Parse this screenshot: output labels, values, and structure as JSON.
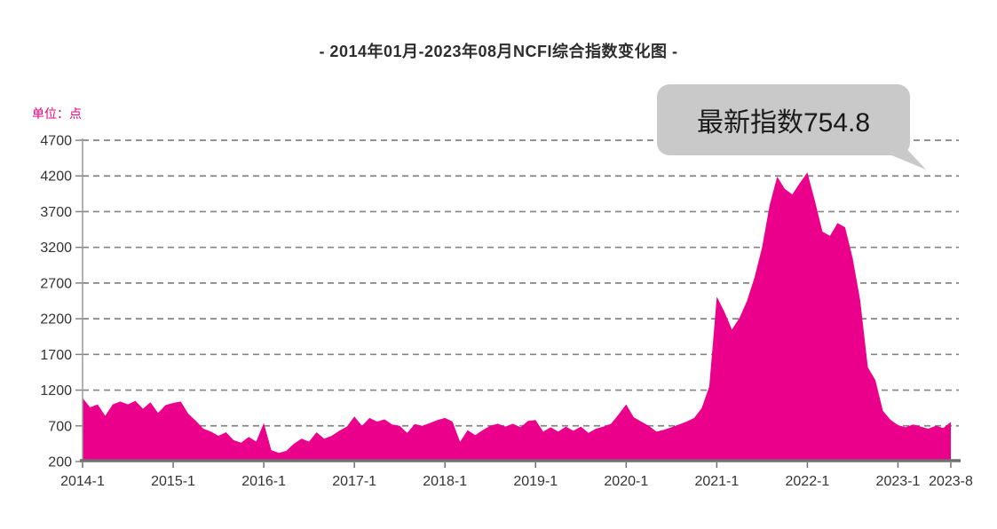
{
  "page": {
    "title": "- 2014年01月-2023年08月NCFI综合指数变化图 -",
    "unit_label": "单位：点"
  },
  "callout": {
    "text": "最新指数754.8"
  },
  "colors": {
    "area": "#EB008B",
    "grid": "#848484",
    "axis": "#6f6f6f",
    "tick_label": "#333333",
    "unit_label": "#e6007e",
    "bubble_bg": "#c9c9c9",
    "bubble_text": "#1a1a1a"
  },
  "chart_data": {
    "type": "area",
    "title": "- 2014年01月-2023年08月NCFI综合指数变化图 -",
    "series_name": "NCFI综合指数",
    "unit": "点",
    "latest_value": 754.8,
    "x_start": "2014-01",
    "x_end": "2023-08",
    "frequency": "monthly",
    "grid": "dashed-horizontal",
    "legend_position": "none",
    "ylim": [
      200,
      4700
    ],
    "y_ticks": [
      200,
      700,
      1200,
      1700,
      2200,
      2700,
      3200,
      3700,
      4200,
      4700
    ],
    "x_tick_labels": [
      "2014-1",
      "2015-1",
      "2016-1",
      "2017-1",
      "2018-1",
      "2019-1",
      "2020-1",
      "2021-1",
      "2022-1",
      "2023-1",
      "2023-8"
    ],
    "x_tick_months": [
      0,
      12,
      24,
      36,
      48,
      60,
      72,
      84,
      96,
      108,
      115
    ],
    "values": [
      1090,
      960,
      1000,
      840,
      1000,
      1040,
      1000,
      1050,
      940,
      1030,
      880,
      990,
      1020,
      1040,
      870,
      770,
      660,
      620,
      560,
      610,
      500,
      465,
      545,
      480,
      740,
      360,
      320,
      350,
      450,
      520,
      480,
      610,
      520,
      560,
      630,
      690,
      830,
      700,
      810,
      760,
      790,
      720,
      700,
      600,
      725,
      700,
      740,
      780,
      810,
      760,
      475,
      640,
      570,
      640,
      700,
      730,
      690,
      730,
      680,
      770,
      780,
      620,
      680,
      620,
      690,
      630,
      690,
      600,
      660,
      690,
      730,
      860,
      1000,
      820,
      760,
      700,
      620,
      645,
      680,
      720,
      760,
      810,
      950,
      1250,
      2510,
      2300,
      2050,
      2210,
      2450,
      2780,
      3200,
      3790,
      4190,
      4020,
      3940,
      4100,
      4250,
      3850,
      3420,
      3360,
      3540,
      3480,
      3050,
      2460,
      1520,
      1340,
      910,
      785,
      710,
      680,
      720,
      690,
      660,
      700,
      670,
      754.8
    ]
  }
}
